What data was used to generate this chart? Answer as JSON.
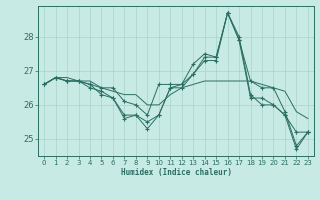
{
  "title": "",
  "xlabel": "Humidex (Indice chaleur)",
  "bg_color": "#c8eae4",
  "grid_color": "#a8d4cc",
  "line_color": "#2a6e64",
  "xlim": [
    -0.5,
    23.5
  ],
  "ylim": [
    24.5,
    28.9
  ],
  "yticks": [
    25,
    26,
    27,
    28
  ],
  "xticks": [
    0,
    1,
    2,
    3,
    4,
    5,
    6,
    7,
    8,
    9,
    10,
    11,
    12,
    13,
    14,
    15,
    16,
    17,
    18,
    19,
    20,
    21,
    22,
    23
  ],
  "series": [
    {
      "y": [
        26.6,
        26.8,
        26.7,
        26.7,
        26.6,
        26.5,
        26.5,
        26.1,
        26.0,
        25.7,
        26.6,
        26.6,
        26.6,
        27.2,
        27.5,
        27.4,
        28.7,
        27.9,
        26.7,
        26.5,
        26.5,
        25.8,
        24.8,
        25.2
      ],
      "marker": true
    },
    {
      "y": [
        26.6,
        26.8,
        26.7,
        26.7,
        26.5,
        26.4,
        26.2,
        25.7,
        25.7,
        25.5,
        25.7,
        26.5,
        26.5,
        26.9,
        27.3,
        27.3,
        28.7,
        27.9,
        26.2,
        26.2,
        26.0,
        25.7,
        25.2,
        25.2
      ],
      "marker": true
    },
    {
      "y": [
        26.6,
        26.8,
        26.8,
        26.7,
        26.7,
        26.5,
        26.4,
        26.3,
        26.3,
        26.0,
        26.0,
        26.3,
        26.5,
        26.6,
        26.7,
        26.7,
        26.7,
        26.7,
        26.7,
        26.6,
        26.5,
        26.4,
        25.8,
        25.6
      ],
      "marker": false
    },
    {
      "y": [
        26.6,
        26.8,
        26.7,
        26.7,
        26.6,
        26.3,
        26.2,
        25.6,
        25.7,
        25.3,
        25.7,
        26.5,
        26.6,
        26.9,
        27.4,
        27.4,
        28.7,
        28.0,
        26.3,
        26.0,
        26.0,
        25.7,
        24.7,
        25.2
      ],
      "marker": true
    }
  ]
}
